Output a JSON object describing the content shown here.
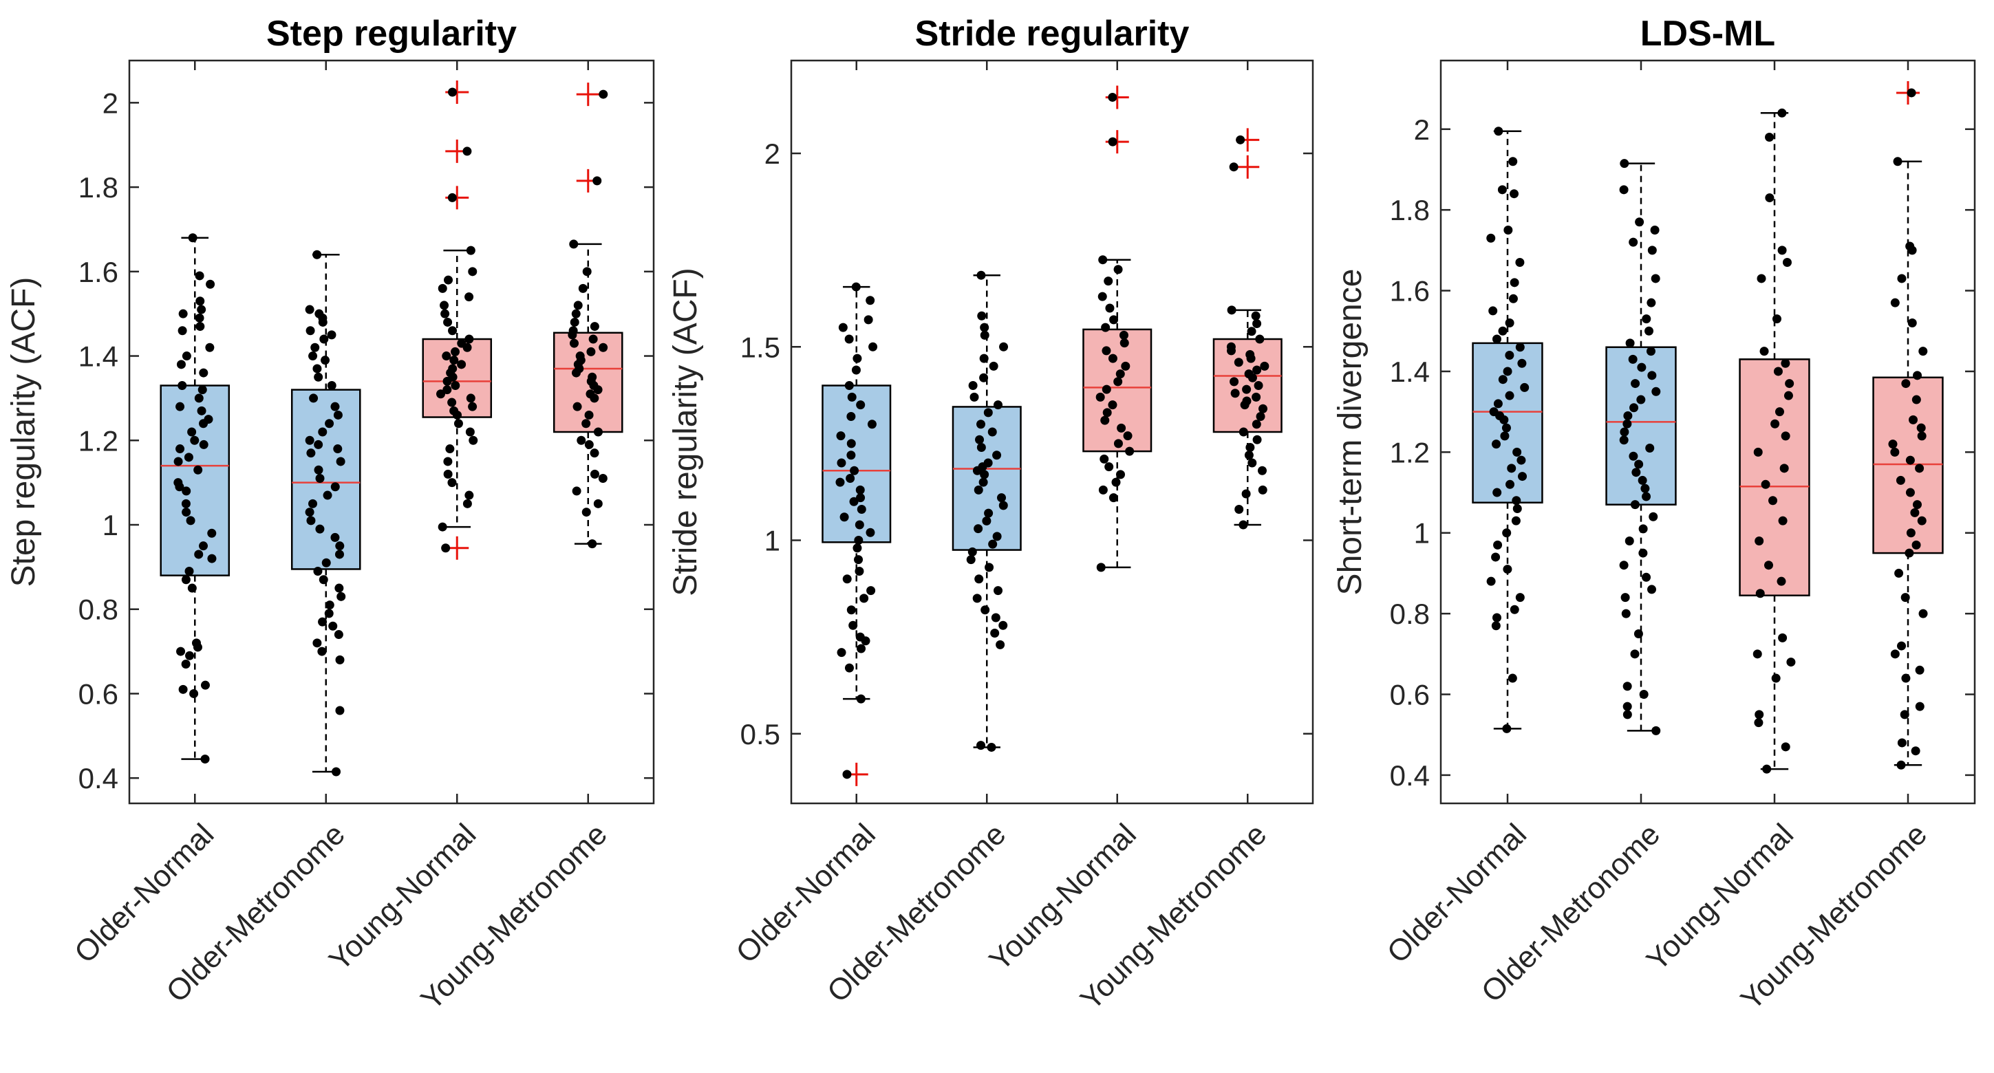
{
  "colors": {
    "older_fill": "#a8cbe6",
    "young_fill": "#f4b4b4",
    "median": "#e8403a",
    "outlier": "#e8130b",
    "point": "#000000",
    "axis": "#262626"
  },
  "chart_data": [
    {
      "type": "box",
      "title": "Step regularity",
      "xlabel": "",
      "ylabel": "Step regularity (ACF)",
      "ylim": [
        0.34,
        2.1
      ],
      "yticks": [
        0.4,
        0.6,
        0.8,
        1,
        1.2,
        1.4,
        1.6,
        1.8,
        2
      ],
      "ytick_labels": [
        "0.4",
        "0.6",
        "0.8",
        "1",
        "1.2",
        "1.4",
        "1.6",
        "1.8",
        "2"
      ],
      "categories": [
        "Older-Normal",
        "Older-Metronome",
        "Young-Normal",
        "Young-Metronome"
      ],
      "groups": [
        {
          "name": "Older-Normal",
          "color": "older",
          "q1": 0.88,
          "median": 1.14,
          "q3": 1.33,
          "whisker_low": 0.445,
          "whisker_high": 1.68,
          "outliers": [],
          "points": [
            1.68,
            1.59,
            1.57,
            1.53,
            1.51,
            1.5,
            1.49,
            1.47,
            1.46,
            1.42,
            1.4,
            1.38,
            1.36,
            1.33,
            1.32,
            1.3,
            1.28,
            1.27,
            1.25,
            1.24,
            1.22,
            1.2,
            1.19,
            1.18,
            1.16,
            1.15,
            1.13,
            1.1,
            1.09,
            1.08,
            1.05,
            1.03,
            1.01,
            0.98,
            0.95,
            0.93,
            0.92,
            0.89,
            0.87,
            0.85,
            0.72,
            0.71,
            0.7,
            0.69,
            0.67,
            0.62,
            0.61,
            0.6,
            0.445
          ]
        },
        {
          "name": "Older-Metronome",
          "color": "older",
          "q1": 0.895,
          "median": 1.1,
          "q3": 1.32,
          "whisker_low": 0.415,
          "whisker_high": 1.64,
          "outliers": [],
          "points": [
            1.64,
            1.51,
            1.5,
            1.49,
            1.48,
            1.46,
            1.45,
            1.44,
            1.42,
            1.4,
            1.39,
            1.37,
            1.35,
            1.33,
            1.3,
            1.28,
            1.26,
            1.24,
            1.22,
            1.2,
            1.19,
            1.18,
            1.17,
            1.15,
            1.13,
            1.11,
            1.09,
            1.07,
            1.05,
            1.03,
            1.01,
            0.99,
            0.97,
            0.95,
            0.93,
            0.91,
            0.89,
            0.87,
            0.85,
            0.83,
            0.81,
            0.79,
            0.77,
            0.76,
            0.74,
            0.72,
            0.7,
            0.68,
            0.56,
            0.415
          ]
        },
        {
          "name": "Young-Normal",
          "color": "young",
          "q1": 1.255,
          "median": 1.34,
          "q3": 1.44,
          "whisker_low": 0.995,
          "whisker_high": 1.65,
          "outliers": [
            2.025,
            1.885,
            1.775,
            0.945
          ],
          "points": [
            2.025,
            1.885,
            1.775,
            1.65,
            1.6,
            1.58,
            1.56,
            1.54,
            1.52,
            1.5,
            1.48,
            1.46,
            1.44,
            1.43,
            1.42,
            1.41,
            1.4,
            1.39,
            1.38,
            1.37,
            1.36,
            1.35,
            1.34,
            1.33,
            1.32,
            1.31,
            1.3,
            1.29,
            1.28,
            1.27,
            1.26,
            1.24,
            1.22,
            1.2,
            1.18,
            1.15,
            1.12,
            1.1,
            1.07,
            1.05,
            0.995,
            0.945
          ]
        },
        {
          "name": "Young-Metronome",
          "color": "young",
          "q1": 1.22,
          "median": 1.37,
          "q3": 1.455,
          "whisker_low": 0.955,
          "whisker_high": 1.665,
          "outliers": [
            2.02,
            1.815
          ],
          "points": [
            2.02,
            1.815,
            1.665,
            1.6,
            1.56,
            1.52,
            1.5,
            1.48,
            1.47,
            1.46,
            1.45,
            1.44,
            1.43,
            1.42,
            1.41,
            1.4,
            1.39,
            1.38,
            1.37,
            1.36,
            1.35,
            1.34,
            1.33,
            1.32,
            1.31,
            1.3,
            1.28,
            1.26,
            1.24,
            1.22,
            1.2,
            1.19,
            1.17,
            1.12,
            1.11,
            1.08,
            1.05,
            1.03,
            0.955
          ]
        }
      ]
    },
    {
      "type": "box",
      "title": "Stride regularity",
      "xlabel": "",
      "ylabel": "Stride regularity (ACF)",
      "ylim": [
        0.32,
        2.24
      ],
      "yticks": [
        0.5,
        1,
        1.5,
        2
      ],
      "ytick_labels": [
        "0.5",
        "1",
        "1.5",
        "2"
      ],
      "categories": [
        "Older-Normal",
        "Older-Metronome",
        "Young-Normal",
        "Young-Metronome"
      ],
      "groups": [
        {
          "name": "Older-Normal",
          "color": "older",
          "q1": 0.995,
          "median": 1.18,
          "q3": 1.4,
          "whisker_low": 0.59,
          "whisker_high": 1.655,
          "outliers": [
            0.395
          ],
          "points": [
            1.655,
            1.62,
            1.57,
            1.55,
            1.52,
            1.5,
            1.47,
            1.44,
            1.4,
            1.37,
            1.35,
            1.32,
            1.3,
            1.27,
            1.25,
            1.22,
            1.2,
            1.18,
            1.16,
            1.15,
            1.13,
            1.11,
            1.1,
            1.08,
            1.06,
            1.04,
            1.02,
            1.0,
            0.98,
            0.95,
            0.92,
            0.9,
            0.87,
            0.85,
            0.82,
            0.78,
            0.75,
            0.74,
            0.72,
            0.71,
            0.67,
            0.59,
            0.395
          ]
        },
        {
          "name": "Older-Metronome",
          "color": "older",
          "q1": 0.975,
          "median": 1.185,
          "q3": 1.345,
          "whisker_low": 0.465,
          "whisker_high": 1.685,
          "outliers": [],
          "points": [
            1.685,
            1.58,
            1.55,
            1.53,
            1.5,
            1.47,
            1.45,
            1.42,
            1.4,
            1.37,
            1.35,
            1.33,
            1.3,
            1.28,
            1.26,
            1.24,
            1.22,
            1.2,
            1.19,
            1.18,
            1.17,
            1.15,
            1.13,
            1.11,
            1.09,
            1.07,
            1.05,
            1.03,
            1.01,
            0.99,
            0.97,
            0.95,
            0.93,
            0.9,
            0.87,
            0.85,
            0.82,
            0.8,
            0.78,
            0.76,
            0.73,
            0.47,
            0.465
          ]
        },
        {
          "name": "Young-Normal",
          "color": "young",
          "q1": 1.23,
          "median": 1.395,
          "q3": 1.545,
          "whisker_low": 0.93,
          "whisker_high": 1.725,
          "outliers": [
            2.145,
            2.03
          ],
          "points": [
            2.145,
            2.03,
            1.725,
            1.7,
            1.67,
            1.63,
            1.6,
            1.57,
            1.55,
            1.53,
            1.51,
            1.49,
            1.47,
            1.45,
            1.43,
            1.41,
            1.39,
            1.37,
            1.35,
            1.33,
            1.31,
            1.29,
            1.27,
            1.25,
            1.23,
            1.21,
            1.19,
            1.17,
            1.15,
            1.13,
            1.11,
            0.93
          ]
        },
        {
          "name": "Young-Metronome",
          "color": "young",
          "q1": 1.28,
          "median": 1.425,
          "q3": 1.52,
          "whisker_low": 1.04,
          "whisker_high": 1.595,
          "outliers": [
            2.035,
            1.965
          ],
          "points": [
            2.035,
            1.965,
            1.595,
            1.58,
            1.56,
            1.54,
            1.52,
            1.5,
            1.49,
            1.48,
            1.47,
            1.46,
            1.45,
            1.44,
            1.43,
            1.42,
            1.41,
            1.4,
            1.39,
            1.38,
            1.37,
            1.36,
            1.35,
            1.34,
            1.32,
            1.3,
            1.28,
            1.26,
            1.24,
            1.22,
            1.2,
            1.18,
            1.13,
            1.12,
            1.08,
            1.04
          ]
        }
      ]
    },
    {
      "type": "box",
      "title": "LDS-ML",
      "xlabel": "",
      "ylabel": "Short-term divergence",
      "ylim": [
        0.33,
        2.17
      ],
      "yticks": [
        0.4,
        0.6,
        0.8,
        1,
        1.2,
        1.4,
        1.6,
        1.8,
        2
      ],
      "ytick_labels": [
        "0.4",
        "0.6",
        "0.8",
        "1",
        "1.2",
        "1.4",
        "1.6",
        "1.8",
        "2"
      ],
      "categories": [
        "Older-Normal",
        "Older-Metronome",
        "Young-Normal",
        "Young-Metronome"
      ],
      "groups": [
        {
          "name": "Older-Normal",
          "color": "older",
          "q1": 1.075,
          "median": 1.3,
          "q3": 1.47,
          "whisker_low": 0.515,
          "whisker_high": 1.995,
          "outliers": [],
          "points": [
            1.995,
            1.92,
            1.85,
            1.84,
            1.75,
            1.73,
            1.67,
            1.62,
            1.58,
            1.55,
            1.52,
            1.5,
            1.48,
            1.46,
            1.44,
            1.42,
            1.4,
            1.38,
            1.36,
            1.34,
            1.32,
            1.3,
            1.29,
            1.28,
            1.26,
            1.24,
            1.22,
            1.2,
            1.18,
            1.16,
            1.14,
            1.12,
            1.1,
            1.08,
            1.06,
            1.03,
            1.0,
            0.97,
            0.94,
            0.91,
            0.88,
            0.84,
            0.81,
            0.79,
            0.77,
            0.64,
            0.515
          ]
        },
        {
          "name": "Older-Metronome",
          "color": "older",
          "q1": 1.07,
          "median": 1.275,
          "q3": 1.46,
          "whisker_low": 0.51,
          "whisker_high": 1.915,
          "outliers": [],
          "points": [
            1.915,
            1.85,
            1.77,
            1.75,
            1.72,
            1.7,
            1.63,
            1.57,
            1.53,
            1.5,
            1.47,
            1.45,
            1.43,
            1.41,
            1.39,
            1.37,
            1.35,
            1.33,
            1.31,
            1.29,
            1.27,
            1.25,
            1.23,
            1.21,
            1.19,
            1.17,
            1.15,
            1.13,
            1.11,
            1.09,
            1.07,
            1.04,
            1.01,
            0.98,
            0.95,
            0.92,
            0.89,
            0.86,
            0.84,
            0.8,
            0.75,
            0.7,
            0.62,
            0.6,
            0.57,
            0.55,
            0.51
          ]
        },
        {
          "name": "Young-Normal",
          "color": "young",
          "q1": 0.845,
          "median": 1.115,
          "q3": 1.43,
          "whisker_low": 0.415,
          "whisker_high": 2.04,
          "outliers": [],
          "points": [
            2.04,
            1.98,
            1.83,
            1.7,
            1.67,
            1.63,
            1.53,
            1.45,
            1.42,
            1.4,
            1.37,
            1.34,
            1.3,
            1.27,
            1.24,
            1.2,
            1.16,
            1.12,
            1.08,
            1.03,
            0.98,
            0.92,
            0.88,
            0.85,
            0.74,
            0.7,
            0.68,
            0.64,
            0.55,
            0.53,
            0.47,
            0.415
          ]
        },
        {
          "name": "Young-Metronome",
          "color": "young",
          "q1": 0.95,
          "median": 1.17,
          "q3": 1.385,
          "whisker_low": 0.425,
          "whisker_high": 1.92,
          "outliers": [
            2.09
          ],
          "points": [
            2.09,
            1.92,
            1.71,
            1.7,
            1.63,
            1.57,
            1.52,
            1.45,
            1.39,
            1.37,
            1.33,
            1.28,
            1.26,
            1.24,
            1.22,
            1.2,
            1.18,
            1.16,
            1.13,
            1.1,
            1.07,
            1.05,
            1.03,
            1.0,
            0.97,
            0.95,
            0.9,
            0.84,
            0.8,
            0.72,
            0.7,
            0.66,
            0.64,
            0.57,
            0.55,
            0.48,
            0.46,
            0.425
          ]
        }
      ]
    }
  ]
}
